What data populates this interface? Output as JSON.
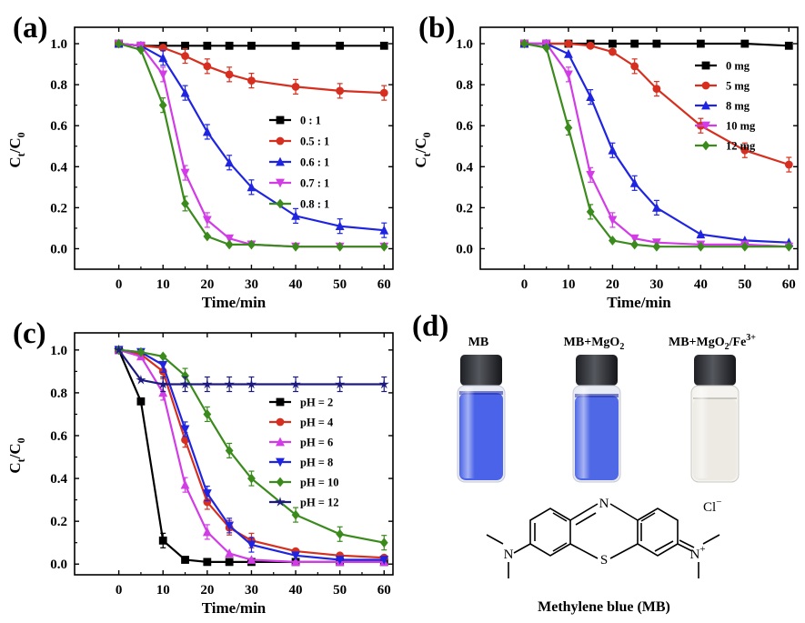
{
  "figure_labels": [
    "(a)",
    "(b)",
    "(c)",
    "(d)"
  ],
  "chart_data": [
    {
      "id": "a",
      "type": "line",
      "xlabel": "Time/min",
      "ylabel_main": "C",
      "ylabel_sub1": "t",
      "ylabel_mid": "/C",
      "ylabel_sub2": "0",
      "xlim": [
        -10,
        62
      ],
      "ylim": [
        -0.1,
        1.08
      ],
      "xticks": [
        0,
        10,
        20,
        30,
        40,
        50,
        60
      ],
      "yticks": [
        0.0,
        0.2,
        0.4,
        0.6,
        0.8,
        1.0
      ],
      "ytick_labels": [
        "0.0",
        "0.2",
        "0.4",
        "0.6",
        "0.8",
        "1.0"
      ],
      "legend_position": "center-right",
      "x": [
        0,
        5,
        10,
        15,
        20,
        25,
        30,
        40,
        50,
        60
      ],
      "series": [
        {
          "name": "0 : 1",
          "color": "#000000",
          "marker": "square",
          "values": [
            1.0,
            0.99,
            0.99,
            0.99,
            0.99,
            0.99,
            0.99,
            0.99,
            0.99,
            0.99
          ]
        },
        {
          "name": "0.5 : 1",
          "color": "#d62f1f",
          "marker": "circle",
          "values": [
            1.0,
            0.99,
            0.98,
            0.94,
            0.89,
            0.85,
            0.82,
            0.79,
            0.77,
            0.76
          ]
        },
        {
          "name": "0.6 : 1",
          "color": "#1f24e0",
          "marker": "triangle",
          "values": [
            1.0,
            0.99,
            0.93,
            0.76,
            0.57,
            0.42,
            0.3,
            0.16,
            0.11,
            0.09
          ]
        },
        {
          "name": "0.7 : 1",
          "color": "#d23ce6",
          "marker": "triangle-down",
          "values": [
            1.0,
            0.99,
            0.85,
            0.37,
            0.14,
            0.05,
            0.02,
            0.01,
            0.01,
            0.01
          ]
        },
        {
          "name": "0.8 : 1",
          "color": "#3a8a1c",
          "marker": "diamond",
          "values": [
            1.0,
            0.97,
            0.7,
            0.22,
            0.06,
            0.02,
            0.02,
            0.01,
            0.01,
            0.01
          ]
        }
      ]
    },
    {
      "id": "b",
      "type": "line",
      "xlabel": "Time/min",
      "ylabel_main": "C",
      "ylabel_sub1": "t",
      "ylabel_mid": "/C",
      "ylabel_sub2": "0",
      "xlim": [
        -10,
        62
      ],
      "ylim": [
        -0.1,
        1.08
      ],
      "xticks": [
        0,
        10,
        20,
        30,
        40,
        50,
        60
      ],
      "yticks": [
        0.0,
        0.2,
        0.4,
        0.6,
        0.8,
        1.0
      ],
      "ytick_labels": [
        "0.0",
        "0.2",
        "0.4",
        "0.6",
        "0.8",
        "1.0"
      ],
      "legend_position": "top-right",
      "x": [
        0,
        5,
        10,
        15,
        20,
        25,
        30,
        40,
        50,
        60
      ],
      "series": [
        {
          "name": "0 mg",
          "color": "#000000",
          "marker": "square",
          "values": [
            1.0,
            1.0,
            1.0,
            1.0,
            1.0,
            1.0,
            1.0,
            1.0,
            1.0,
            0.99
          ]
        },
        {
          "name": "5 mg",
          "color": "#d62f1f",
          "marker": "circle",
          "values": [
            1.0,
            1.0,
            1.0,
            0.99,
            0.96,
            0.89,
            0.78,
            0.6,
            0.48,
            0.41
          ]
        },
        {
          "name": "8 mg",
          "color": "#1f24e0",
          "marker": "triangle",
          "values": [
            1.0,
            1.0,
            0.95,
            0.74,
            0.48,
            0.32,
            0.2,
            0.07,
            0.04,
            0.03
          ]
        },
        {
          "name": "10 mg",
          "color": "#d23ce6",
          "marker": "triangle-down",
          "values": [
            1.0,
            1.0,
            0.85,
            0.36,
            0.14,
            0.05,
            0.03,
            0.02,
            0.02,
            0.01
          ]
        },
        {
          "name": "12 mg",
          "color": "#3a8a1c",
          "marker": "diamond",
          "values": [
            1.0,
            0.98,
            0.59,
            0.18,
            0.04,
            0.02,
            0.01,
            0.01,
            0.01,
            0.01
          ]
        }
      ]
    },
    {
      "id": "c",
      "type": "line",
      "xlabel": "Time/min",
      "ylabel_main": "C",
      "ylabel_sub1": "t",
      "ylabel_mid": "/C",
      "ylabel_sub2": "0",
      "xlim": [
        -10,
        62
      ],
      "ylim": [
        -0.05,
        1.08
      ],
      "xticks": [
        0,
        10,
        20,
        30,
        40,
        50,
        60
      ],
      "yticks": [
        0.0,
        0.2,
        0.4,
        0.6,
        0.8,
        1.0
      ],
      "ytick_labels": [
        "0.0",
        "0.2",
        "0.4",
        "0.6",
        "0.8",
        "1.0"
      ],
      "legend_position": "center-right",
      "x": [
        0,
        5,
        10,
        15,
        20,
        25,
        30,
        40,
        50,
        60
      ],
      "series": [
        {
          "name": "pH = 2",
          "color": "#000000",
          "marker": "square",
          "values": [
            1.0,
            0.76,
            0.11,
            0.02,
            0.01,
            0.01,
            0.01,
            0.01,
            0.01,
            0.01
          ]
        },
        {
          "name": "pH = 4",
          "color": "#d62f1f",
          "marker": "circle",
          "values": [
            1.0,
            0.98,
            0.9,
            0.58,
            0.29,
            0.17,
            0.11,
            0.06,
            0.04,
            0.03
          ]
        },
        {
          "name": "pH = 6",
          "color": "#d23ce6",
          "marker": "triangle",
          "values": [
            1.0,
            0.97,
            0.8,
            0.37,
            0.15,
            0.05,
            0.02,
            0.01,
            0.01,
            0.01
          ]
        },
        {
          "name": "pH = 8",
          "color": "#1f24e0",
          "marker": "triangle-down",
          "values": [
            1.0,
            0.99,
            0.93,
            0.63,
            0.33,
            0.18,
            0.09,
            0.04,
            0.02,
            0.02
          ]
        },
        {
          "name": "pH = 10",
          "color": "#3a8a1c",
          "marker": "diamond",
          "values": [
            1.0,
            0.99,
            0.97,
            0.88,
            0.7,
            0.53,
            0.4,
            0.23,
            0.14,
            0.1
          ]
        },
        {
          "name": "pH = 12",
          "color": "#1c1a80",
          "marker": "star",
          "values": [
            1.0,
            0.86,
            0.84,
            0.84,
            0.84,
            0.84,
            0.84,
            0.84,
            0.84,
            0.84
          ]
        }
      ]
    }
  ],
  "photo_panel": {
    "vials": [
      {
        "label_main": "MB",
        "label_sub": "",
        "label_sup": "",
        "label_suffix": "",
        "liquid_color": "#4a63e8"
      },
      {
        "label_main": "MB+MgO",
        "label_sub": "2",
        "label_sup": "",
        "label_suffix": "",
        "liquid_color": "#4f68e6"
      },
      {
        "label_main": "MB+MgO",
        "label_sub": "2",
        "label_sup": "3+",
        "label_suffix": "/Fe",
        "liquid_color": "#eceae3"
      }
    ],
    "structure": {
      "atom_N_top": "N",
      "atom_S": "S",
      "atom_N_left": "N",
      "atom_N_right": "N",
      "charge_plus": "+",
      "counterion": "Cl",
      "counterion_charge": "−",
      "caption": "Methylene blue (MB)"
    }
  }
}
